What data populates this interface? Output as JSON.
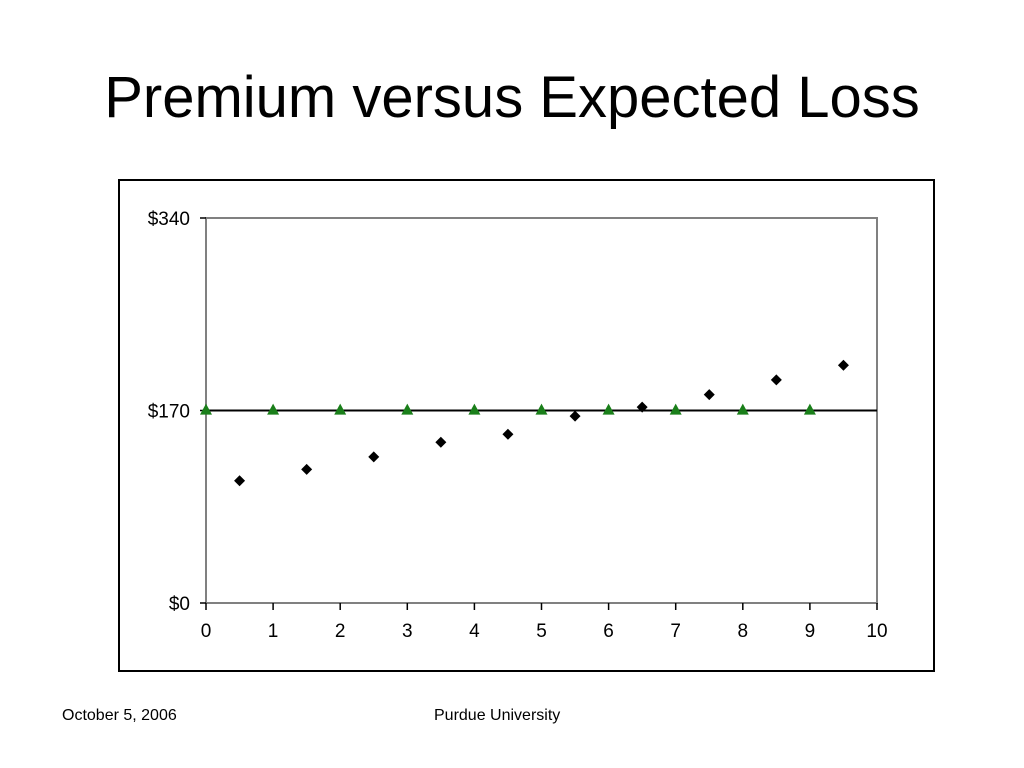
{
  "slide": {
    "title": "Premium versus Expected Loss",
    "footer_date": "October 5, 2006",
    "footer_org": "Purdue University"
  },
  "chart_data": {
    "type": "scatter",
    "title": "",
    "xlabel": "",
    "ylabel": "",
    "xlim": [
      0,
      10
    ],
    "ylim": [
      0,
      340
    ],
    "x_ticks": [
      "0",
      "1",
      "2",
      "3",
      "4",
      "5",
      "6",
      "7",
      "8",
      "9",
      "10"
    ],
    "y_ticks": [
      {
        "value": 0,
        "label": "$0"
      },
      {
        "value": 170,
        "label": "$170"
      },
      {
        "value": 340,
        "label": "$340"
      }
    ],
    "grid": false,
    "legend": "none",
    "reference_line": {
      "y": 170,
      "color": "#000000"
    },
    "series": [
      {
        "marker": "diamond",
        "color": "#000000",
        "points": [
          {
            "x": 0.5,
            "y": 108
          },
          {
            "x": 1.5,
            "y": 118
          },
          {
            "x": 2.5,
            "y": 129
          },
          {
            "x": 3.5,
            "y": 142
          },
          {
            "x": 4.5,
            "y": 149
          },
          {
            "x": 5.5,
            "y": 165
          },
          {
            "x": 6.5,
            "y": 173
          },
          {
            "x": 7.5,
            "y": 184
          },
          {
            "x": 8.5,
            "y": 197
          },
          {
            "x": 9.5,
            "y": 210
          }
        ]
      },
      {
        "marker": "triangle",
        "color": "#1a7f1a",
        "points": [
          {
            "x": 0,
            "y": 170
          },
          {
            "x": 1,
            "y": 170
          },
          {
            "x": 2,
            "y": 170
          },
          {
            "x": 3,
            "y": 170
          },
          {
            "x": 4,
            "y": 170
          },
          {
            "x": 5,
            "y": 170
          },
          {
            "x": 6,
            "y": 170
          },
          {
            "x": 7,
            "y": 170
          },
          {
            "x": 8,
            "y": 170
          },
          {
            "x": 9,
            "y": 170
          }
        ]
      }
    ]
  }
}
